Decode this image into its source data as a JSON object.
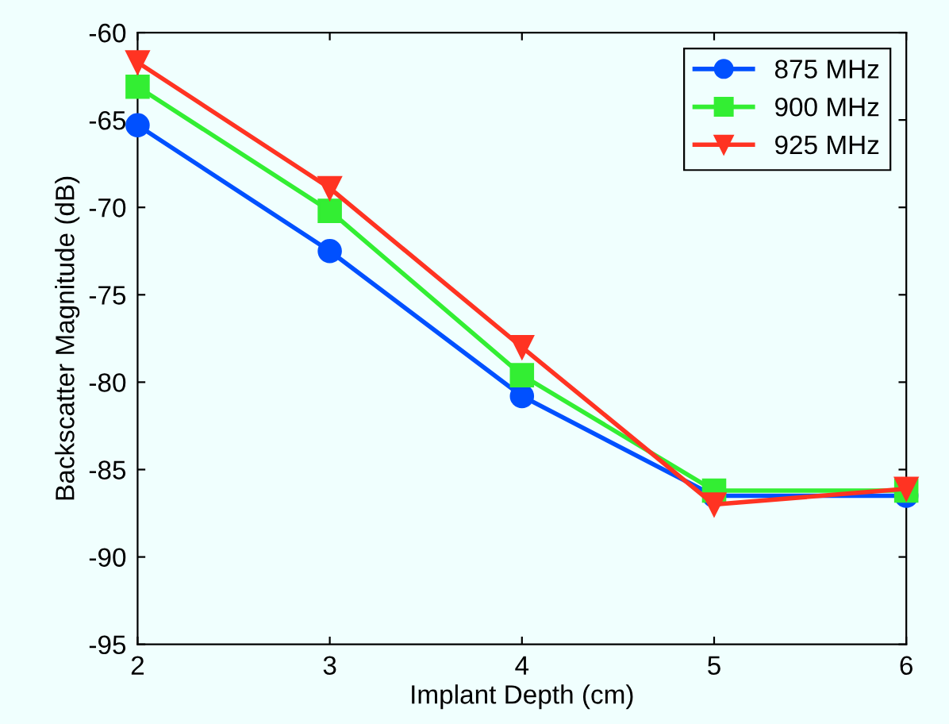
{
  "chart_data": {
    "type": "line",
    "xlabel": "Implant Depth (cm)",
    "ylabel": "Backscatter Magnitude (dB)",
    "x": [
      2,
      3,
      4,
      5,
      6
    ],
    "series": [
      {
        "name": "875 MHz",
        "color": "#0050ff",
        "marker": "circle",
        "values": [
          -65.3,
          -72.5,
          -80.8,
          -86.5,
          -86.5
        ]
      },
      {
        "name": "900 MHz",
        "color": "#33ee33",
        "marker": "square",
        "values": [
          -63.1,
          -70.2,
          -79.6,
          -86.2,
          -86.2
        ]
      },
      {
        "name": "925 MHz",
        "color": "#ff3322",
        "marker": "triangle",
        "values": [
          -61.7,
          -68.9,
          -78.0,
          -87.0,
          -86.1
        ]
      }
    ],
    "xlim": [
      2,
      6
    ],
    "xticks": [
      2,
      3,
      4,
      5,
      6
    ],
    "ylim": [
      -95,
      -60
    ],
    "yticks": [
      -95,
      -90,
      -85,
      -80,
      -75,
      -70,
      -65,
      -60
    ],
    "grid": false,
    "legend": "top right",
    "line_style": "solid"
  }
}
